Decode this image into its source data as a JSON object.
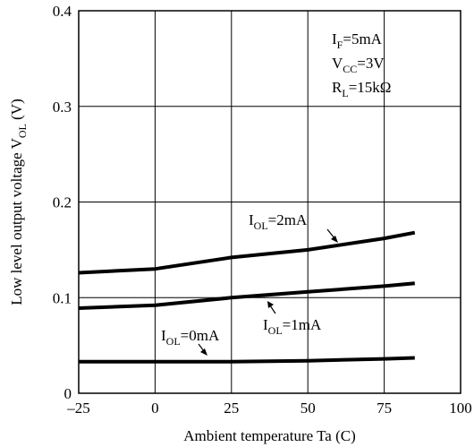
{
  "chart_data": {
    "type": "line",
    "xlabel": "Ambient temperature Ta (C)",
    "ylabel": {
      "main": "Low level output voltage V",
      "sub": "OL",
      "unit": " (V)"
    },
    "xlim": [
      -25,
      100
    ],
    "ylim": [
      0,
      0.4
    ],
    "xticks": [
      -25,
      0,
      25,
      50,
      75,
      100
    ],
    "xtick_labels": [
      "–25",
      "0",
      "25",
      "50",
      "75",
      "100"
    ],
    "yticks": [
      0,
      0.1,
      0.2,
      0.3,
      0.4
    ],
    "ytick_labels": [
      "0",
      "0.1",
      "0.2",
      "0.3",
      "0.4"
    ],
    "grid": true,
    "conditions": [
      {
        "main": "I",
        "sub": "F",
        "rest": "=5mA"
      },
      {
        "main": "V",
        "sub": "CC",
        "rest": "=3V"
      },
      {
        "main": "R",
        "sub": "L",
        "rest": "=15kΩ"
      }
    ],
    "series": [
      {
        "name": {
          "main": "I",
          "sub": "OL",
          "rest": "=2mA"
        },
        "x": [
          -25,
          0,
          25,
          50,
          75,
          85
        ],
        "values": [
          0.126,
          0.13,
          0.142,
          0.15,
          0.162,
          0.168
        ]
      },
      {
        "name": {
          "main": "I",
          "sub": "OL",
          "rest": "=1mA"
        },
        "x": [
          -25,
          0,
          25,
          50,
          75,
          85
        ],
        "values": [
          0.089,
          0.092,
          0.1,
          0.106,
          0.112,
          0.115
        ]
      },
      {
        "name": {
          "main": "I",
          "sub": "OL",
          "rest": "=0mA"
        },
        "x": [
          -25,
          0,
          25,
          50,
          75,
          85
        ],
        "values": [
          0.033,
          0.033,
          0.033,
          0.034,
          0.036,
          0.037
        ]
      }
    ]
  }
}
